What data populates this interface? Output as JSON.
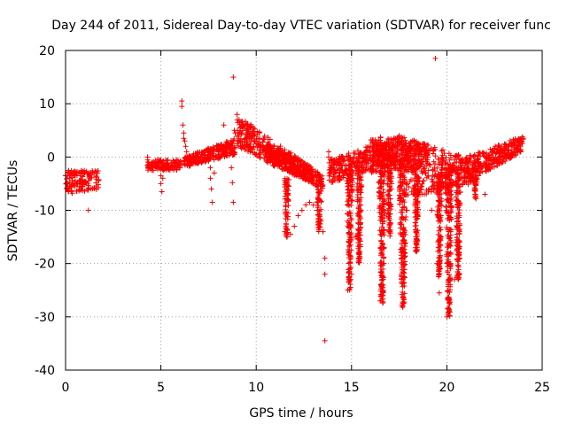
{
  "chart_data": {
    "type": "scatter",
    "title": "Day 244 of 2011, Sidereal Day-to-day VTEC variation (SDTVAR) for receiver func",
    "xlabel": "GPS time / hours",
    "ylabel": "SDTVAR / TECUs",
    "xlim": [
      0,
      25
    ],
    "ylim": [
      -40,
      20
    ],
    "xticks": [
      0,
      5,
      10,
      15,
      20,
      25
    ],
    "yticks": [
      -40,
      -30,
      -20,
      -10,
      0,
      10,
      20
    ],
    "xtick_labels": [
      "0",
      "5",
      "10",
      "15",
      "20",
      "25"
    ],
    "ytick_labels": [
      "-40",
      "-30",
      "-20",
      "-10",
      "0",
      "10",
      "20"
    ],
    "grid": true,
    "marker": "+",
    "color": "#ff0000",
    "series": [
      {
        "name": "SDTVAR",
        "points": [
          [
            0.0,
            -3.5
          ],
          [
            0.05,
            -5.0
          ],
          [
            0.1,
            -6.0
          ],
          [
            0.15,
            -6.5
          ],
          [
            0.2,
            -4.0
          ],
          [
            0.25,
            -3.0
          ],
          [
            0.3,
            -5.5
          ],
          [
            0.35,
            -6.8
          ],
          [
            0.4,
            -3.2
          ],
          [
            0.45,
            -2.8
          ],
          [
            0.5,
            -4.5
          ],
          [
            0.55,
            -3.0
          ],
          [
            0.6,
            -3.5
          ],
          [
            0.7,
            -2.9
          ],
          [
            0.8,
            -3.1
          ],
          [
            0.9,
            -2.8
          ],
          [
            1.0,
            -3.0
          ],
          [
            1.1,
            -2.7
          ],
          [
            1.2,
            -3.2
          ],
          [
            1.3,
            -2.9
          ],
          [
            1.4,
            -2.6
          ],
          [
            1.5,
            -3.0
          ],
          [
            1.6,
            -2.8
          ],
          [
            1.7,
            -2.6
          ],
          [
            1.2,
            -10.0
          ],
          [
            4.3,
            0.0
          ],
          [
            4.35,
            -1.0
          ],
          [
            4.4,
            -1.5
          ],
          [
            4.5,
            -1.8
          ],
          [
            4.6,
            -2.0
          ],
          [
            4.7,
            -1.8
          ],
          [
            4.8,
            -2.2
          ],
          [
            4.9,
            -1.9
          ],
          [
            5.0,
            -2.0
          ],
          [
            5.0,
            -3.5
          ],
          [
            5.0,
            -5.0
          ],
          [
            5.05,
            -6.5
          ],
          [
            5.1,
            -4.0
          ],
          [
            5.2,
            -2.0
          ],
          [
            5.4,
            -1.7
          ],
          [
            5.6,
            -2.1
          ],
          [
            5.8,
            -1.8
          ],
          [
            6.0,
            -2.0
          ],
          [
            6.1,
            -1.5
          ],
          [
            6.1,
            10.5
          ],
          [
            6.1,
            9.5
          ],
          [
            6.15,
            6.0
          ],
          [
            6.2,
            4.5
          ],
          [
            6.2,
            3.5
          ],
          [
            6.25,
            3.0
          ],
          [
            6.3,
            2.0
          ],
          [
            6.35,
            1.0
          ],
          [
            6.4,
            0.0
          ],
          [
            6.5,
            -0.5
          ],
          [
            6.6,
            -1.0
          ],
          [
            6.7,
            -1.2
          ],
          [
            6.8,
            -1.0
          ],
          [
            7.0,
            -0.8
          ],
          [
            7.2,
            -0.5
          ],
          [
            7.4,
            0.0
          ],
          [
            7.6,
            0.5
          ],
          [
            7.6,
            -2.0
          ],
          [
            7.6,
            -4.0
          ],
          [
            7.65,
            -6.0
          ],
          [
            7.7,
            -8.5
          ],
          [
            7.8,
            -3.0
          ],
          [
            8.0,
            1.0
          ],
          [
            8.2,
            1.5
          ],
          [
            8.3,
            6.0
          ],
          [
            8.4,
            1.8
          ],
          [
            8.6,
            2.0
          ],
          [
            8.7,
            -2.0
          ],
          [
            8.75,
            -4.8
          ],
          [
            8.8,
            -8.5
          ],
          [
            8.8,
            15.0
          ],
          [
            8.85,
            5.0
          ],
          [
            8.9,
            4.5
          ],
          [
            9.0,
            8.0
          ],
          [
            9.0,
            2.5
          ],
          [
            9.1,
            7.0
          ],
          [
            9.2,
            6.5
          ],
          [
            9.3,
            6.0
          ],
          [
            9.4,
            5.5
          ],
          [
            9.5,
            5.0
          ],
          [
            9.6,
            4.5
          ],
          [
            9.7,
            4.0
          ],
          [
            9.8,
            3.5
          ],
          [
            9.9,
            3.0
          ],
          [
            10.0,
            2.5
          ],
          [
            10.2,
            2.0
          ],
          [
            10.4,
            1.5
          ],
          [
            10.6,
            1.0
          ],
          [
            10.8,
            0.5
          ],
          [
            11.0,
            0.0
          ],
          [
            11.2,
            -0.5
          ],
          [
            11.4,
            -1.0
          ],
          [
            11.5,
            -14.0
          ],
          [
            11.6,
            -15.0
          ],
          [
            11.8,
            -14.5
          ],
          [
            12.0,
            -13.0
          ],
          [
            12.2,
            -11.0
          ],
          [
            12.4,
            -10.0
          ],
          [
            12.6,
            -9.0
          ],
          [
            12.8,
            -8.5
          ],
          [
            13.0,
            -9.0
          ],
          [
            12.5,
            -1.5
          ],
          [
            12.6,
            -2.0
          ],
          [
            13.2,
            -10.0
          ],
          [
            13.4,
            -12.0
          ],
          [
            13.5,
            -14.0
          ],
          [
            13.6,
            -19.0
          ],
          [
            13.6,
            -22.0
          ],
          [
            13.6,
            -34.5
          ],
          [
            13.8,
            1.0
          ],
          [
            13.8,
            0.0
          ],
          [
            13.9,
            -0.5
          ],
          [
            14.0,
            -1.0
          ],
          [
            14.2,
            -1.5
          ],
          [
            14.4,
            -2.0
          ],
          [
            14.6,
            -3.0
          ],
          [
            14.8,
            -4.0
          ],
          [
            14.8,
            -25.0
          ],
          [
            15.0,
            -22.0
          ],
          [
            15.2,
            -15.0
          ],
          [
            15.4,
            -8.0
          ],
          [
            15.6,
            -3.0
          ],
          [
            15.8,
            0.0
          ],
          [
            16.0,
            2.0
          ],
          [
            16.2,
            2.5
          ],
          [
            16.5,
            -27.0
          ],
          [
            16.7,
            -20.0
          ],
          [
            16.9,
            -10.0
          ],
          [
            17.1,
            -5.0
          ],
          [
            17.3,
            3.5
          ],
          [
            17.5,
            4.0
          ],
          [
            17.7,
            -28.0
          ],
          [
            17.8,
            -18.0
          ],
          [
            17.9,
            -10.0
          ],
          [
            18.0,
            2.5
          ],
          [
            18.2,
            3.0
          ],
          [
            18.4,
            2.0
          ],
          [
            18.6,
            1.5
          ],
          [
            18.8,
            1.0
          ],
          [
            19.0,
            0.0
          ],
          [
            19.2,
            -10.0
          ],
          [
            19.4,
            18.5
          ],
          [
            19.5,
            -20.0
          ],
          [
            19.6,
            -25.5
          ],
          [
            19.7,
            -15.0
          ],
          [
            19.8,
            -5.0
          ],
          [
            20.0,
            -30.0
          ],
          [
            20.1,
            -27.0
          ],
          [
            20.2,
            -20.0
          ],
          [
            20.4,
            -23.0
          ],
          [
            20.6,
            -12.0
          ],
          [
            20.8,
            -2.0
          ],
          [
            21.0,
            -1.0
          ],
          [
            21.2,
            -3.0
          ],
          [
            21.5,
            -2.5
          ],
          [
            21.8,
            -1.5
          ],
          [
            22.0,
            -7.0
          ],
          [
            22.2,
            0.0
          ],
          [
            22.5,
            1.0
          ],
          [
            22.8,
            1.5
          ],
          [
            23.0,
            0.0
          ],
          [
            23.2,
            2.0
          ],
          [
            23.5,
            2.5
          ],
          [
            23.8,
            3.0
          ],
          [
            24.0,
            3.5
          ]
        ],
        "bands": [
          {
            "x0": 6.2,
            "x1": 8.9,
            "upper0": 0.0,
            "upper1": 3.5,
            "lower0": -2.0,
            "lower1": 0.5
          },
          {
            "x0": 9.0,
            "x1": 13.5,
            "upper0": 8.0,
            "upper1": -3.5,
            "lower0": 2.0,
            "lower1": -6.0
          },
          {
            "x0": 10.5,
            "x1": 13.0,
            "upper0": 2.5,
            "upper1": -2.0,
            "lower0": -1.0,
            "lower1": -5.0
          },
          {
            "x0": 13.8,
            "x1": 17.5,
            "upper0": -0.5,
            "upper1": 4.0,
            "lower0": -5.0,
            "lower1": -1.0
          },
          {
            "x0": 16.0,
            "x1": 19.0,
            "upper0": 4.0,
            "upper1": 2.5,
            "lower0": -3.0,
            "lower1": -2.0
          },
          {
            "x0": 17.5,
            "x1": 21.5,
            "upper0": 4.0,
            "upper1": -0.5,
            "lower0": -8.0,
            "lower1": -5.0
          },
          {
            "x0": 21.0,
            "x1": 24.0,
            "upper0": 0.0,
            "upper1": 4.0,
            "lower0": -5.0,
            "lower1": 1.0
          }
        ],
        "dips": [
          {
            "x": 11.6,
            "top": -4.0,
            "bottom": -15.0,
            "width": 0.25
          },
          {
            "x": 13.3,
            "top": -6.0,
            "bottom": -14.0,
            "width": 0.3
          },
          {
            "x": 14.9,
            "top": -2.0,
            "bottom": -25.0,
            "width": 0.35
          },
          {
            "x": 15.4,
            "top": -1.0,
            "bottom": -20.0,
            "width": 0.3
          },
          {
            "x": 16.6,
            "top": 0.0,
            "bottom": -27.5,
            "width": 0.4
          },
          {
            "x": 17.0,
            "top": 1.0,
            "bottom": -15.0,
            "width": 0.3
          },
          {
            "x": 17.7,
            "top": 0.5,
            "bottom": -28.5,
            "width": 0.45
          },
          {
            "x": 18.4,
            "top": -2.0,
            "bottom": -18.0,
            "width": 0.3
          },
          {
            "x": 19.6,
            "top": -3.0,
            "bottom": -22.5,
            "width": 0.3
          },
          {
            "x": 20.1,
            "top": -1.0,
            "bottom": -30.0,
            "width": 0.4
          },
          {
            "x": 20.6,
            "top": -2.0,
            "bottom": -23.0,
            "width": 0.3
          },
          {
            "x": 21.5,
            "top": -4.0,
            "bottom": -8.0,
            "width": 0.2
          }
        ],
        "cluster": [
          {
            "x0": 0.0,
            "x1": 1.8,
            "y0": -6.5,
            "y1": -2.5
          },
          {
            "x0": 4.3,
            "x1": 6.1,
            "y0": -2.5,
            "y1": -0.5
          }
        ]
      }
    ]
  }
}
